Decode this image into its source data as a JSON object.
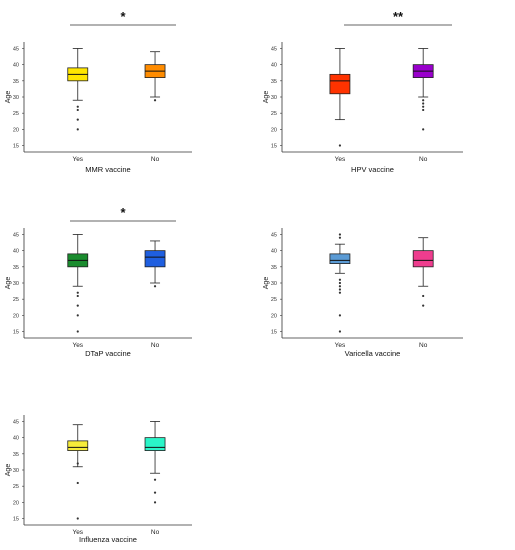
{
  "chart_data": [
    {
      "type": "box",
      "xlabel": "MMR vaccine",
      "ylabel": "Age",
      "ylim": [
        13,
        47
      ],
      "yticks": [
        15,
        20,
        25,
        30,
        35,
        40,
        45
      ],
      "categories": [
        "Yes",
        "No"
      ],
      "significance": "*",
      "boxes": [
        {
          "category": "Yes",
          "min": 29,
          "q1": 35,
          "median": 37,
          "q3": 39,
          "max": 45,
          "color": "#FFE600",
          "outliers": [
            27,
            26,
            23,
            20
          ]
        },
        {
          "category": "No",
          "min": 30,
          "q1": 36,
          "median": 38,
          "q3": 40,
          "max": 44,
          "color": "#FF8C00",
          "outliers": [
            29
          ]
        }
      ]
    },
    {
      "type": "box",
      "xlabel": "HPV vaccine",
      "ylabel": "Age",
      "ylim": [
        13,
        47
      ],
      "yticks": [
        15,
        20,
        25,
        30,
        35,
        40,
        45
      ],
      "categories": [
        "Yes",
        "No"
      ],
      "significance": "**",
      "boxes": [
        {
          "category": "Yes",
          "min": 23,
          "q1": 31,
          "median": 35,
          "q3": 37,
          "max": 45,
          "color": "#FF3300",
          "outliers": [
            15
          ]
        },
        {
          "category": "No",
          "min": 30,
          "q1": 36,
          "median": 38,
          "q3": 40,
          "max": 45,
          "color": "#9900CC",
          "outliers": [
            29,
            28,
            27,
            26,
            20
          ]
        }
      ]
    },
    {
      "type": "box",
      "xlabel": "DTaP vaccine",
      "ylabel": "Age",
      "ylim": [
        13,
        47
      ],
      "yticks": [
        15,
        20,
        25,
        30,
        35,
        40,
        45
      ],
      "categories": [
        "Yes",
        "No"
      ],
      "significance": "*",
      "boxes": [
        {
          "category": "Yes",
          "min": 29,
          "q1": 35,
          "median": 37,
          "q3": 39,
          "max": 45,
          "color": "#1A8C2E",
          "outliers": [
            27,
            26,
            23,
            20,
            15
          ]
        },
        {
          "category": "No",
          "min": 30,
          "q1": 35,
          "median": 38,
          "q3": 40,
          "max": 43,
          "color": "#1F5FE0",
          "outliers": [
            29
          ]
        }
      ]
    },
    {
      "type": "box",
      "xlabel": "Varicella vaccine",
      "ylabel": "Age",
      "ylim": [
        13,
        47
      ],
      "yticks": [
        15,
        20,
        25,
        30,
        35,
        40,
        45
      ],
      "categories": [
        "Yes",
        "No"
      ],
      "significance": "",
      "boxes": [
        {
          "category": "Yes",
          "min": 33,
          "q1": 36,
          "median": 37,
          "q3": 39,
          "max": 42,
          "color": "#5B9BD5",
          "outliers": [
            45,
            44,
            31,
            30,
            29,
            28,
            27,
            20,
            15
          ]
        },
        {
          "category": "No",
          "min": 29,
          "q1": 35,
          "median": 37,
          "q3": 40,
          "max": 44,
          "color": "#EE3D8E",
          "outliers": [
            26,
            23
          ]
        }
      ]
    },
    {
      "type": "box",
      "xlabel": "Influenza vaccine",
      "ylabel": "Age",
      "ylim": [
        13,
        47
      ],
      "yticks": [
        15,
        20,
        25,
        30,
        35,
        40,
        45
      ],
      "categories": [
        "Yes",
        "No"
      ],
      "significance": "",
      "boxes": [
        {
          "category": "Yes",
          "min": 31,
          "q1": 36,
          "median": 37,
          "q3": 39,
          "max": 44,
          "color": "#F7EC3A",
          "outliers": [
            32,
            26,
            15
          ]
        },
        {
          "category": "No",
          "min": 29,
          "q1": 36,
          "median": 37,
          "q3": 40,
          "max": 45,
          "color": "#2AF5C8",
          "outliers": [
            27,
            23,
            20
          ]
        }
      ]
    }
  ]
}
